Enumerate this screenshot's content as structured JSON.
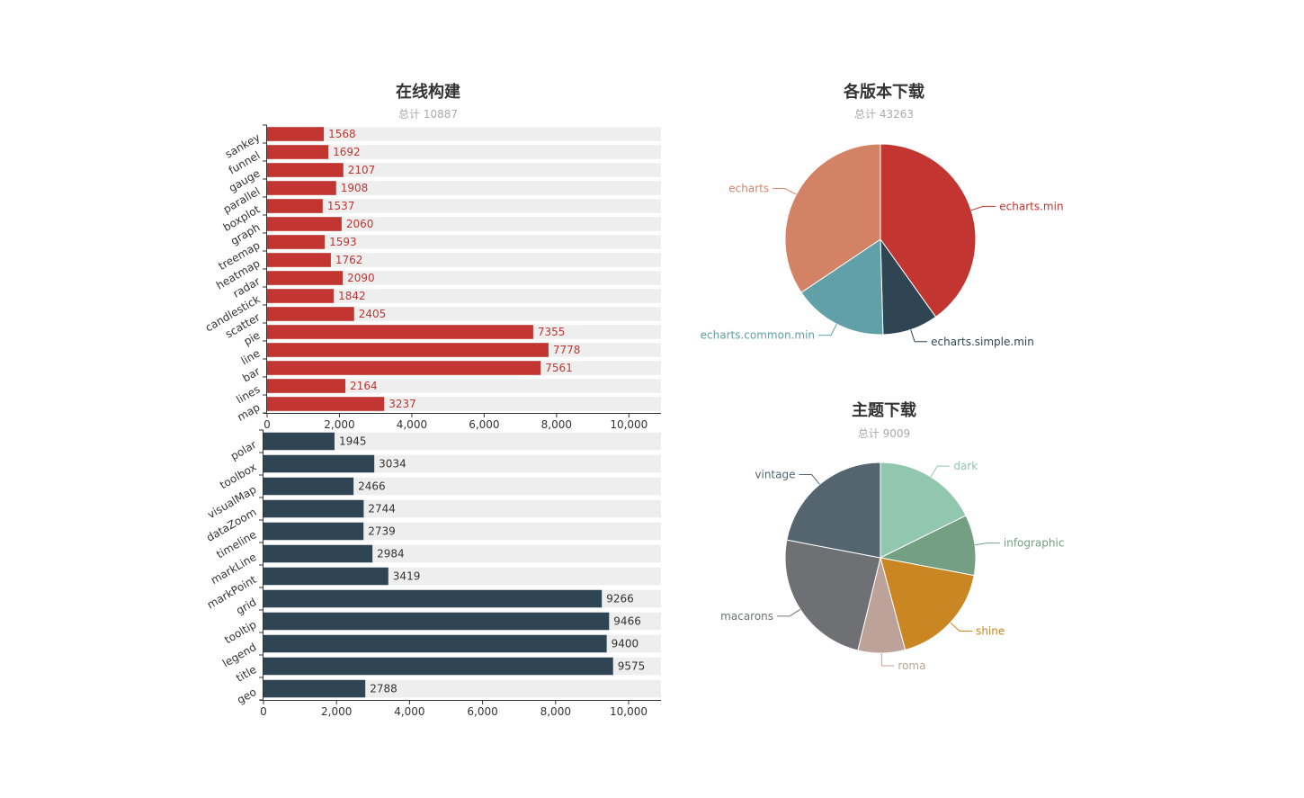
{
  "chart_data": [
    {
      "type": "bar",
      "orientation": "horizontal",
      "title": "在线构建",
      "subtitle": "总计 10887",
      "categories": [
        "sankey",
        "funnel",
        "gauge",
        "parallel",
        "boxplot",
        "graph",
        "treemap",
        "heatmap",
        "radar",
        "candlestick",
        "scatter",
        "pie",
        "line",
        "bar",
        "lines",
        "map"
      ],
      "values": [
        1568,
        1692,
        2107,
        1908,
        1537,
        2060,
        1593,
        1762,
        2090,
        1842,
        2405,
        7355,
        7778,
        7561,
        2164,
        3237
      ],
      "background_max": 10887,
      "xlim": [
        0,
        10887
      ],
      "xticks": [
        "0",
        "2,000",
        "4,000",
        "6,000",
        "8,000",
        "10,000"
      ],
      "color": "#c23531",
      "background_color": "#eeeeee",
      "grid": false
    },
    {
      "type": "bar",
      "orientation": "horizontal",
      "categories": [
        "polar",
        "toolbox",
        "visualMap",
        "dataZoom",
        "timeline",
        "markLine",
        "markPoint",
        "grid",
        "tooltip",
        "legend",
        "title",
        "geo"
      ],
      "values": [
        1945,
        3034,
        2466,
        2744,
        2739,
        2984,
        3419,
        9266,
        9466,
        9400,
        9575,
        2788
      ],
      "background_max": 10887,
      "xlim": [
        0,
        10887
      ],
      "xticks": [
        "0",
        "2,000",
        "4,000",
        "6,000",
        "8,000",
        "10,000"
      ],
      "color": "#2f4554",
      "background_color": "#eeeeee",
      "grid": false
    },
    {
      "type": "pie",
      "title": "各版本下载",
      "subtitle": "总计 43263",
      "slices": [
        {
          "name": "echarts.min",
          "value": 17365,
          "color": "#c23531"
        },
        {
          "name": "echarts.simple.min",
          "value": 4079,
          "color": "#2f4554"
        },
        {
          "name": "echarts.common.min",
          "value": 6929,
          "color": "#61a0a8"
        },
        {
          "name": "echarts",
          "value": 14890,
          "color": "#d48265"
        }
      ]
    },
    {
      "type": "pie",
      "title": "主题下载",
      "subtitle": "总计 9009",
      "slices": [
        {
          "name": "dark",
          "value": 1594,
          "color": "#91c7ae"
        },
        {
          "name": "infographic",
          "value": 925,
          "color": "#749f83"
        },
        {
          "name": "shine",
          "value": 1608,
          "color": "#ca8622"
        },
        {
          "name": "roma",
          "value": 721,
          "color": "#bda29a"
        },
        {
          "name": "macarons",
          "value": 2179,
          "color": "#6e7074"
        },
        {
          "name": "vintage",
          "value": 1982,
          "color": "#546570"
        }
      ]
    }
  ]
}
